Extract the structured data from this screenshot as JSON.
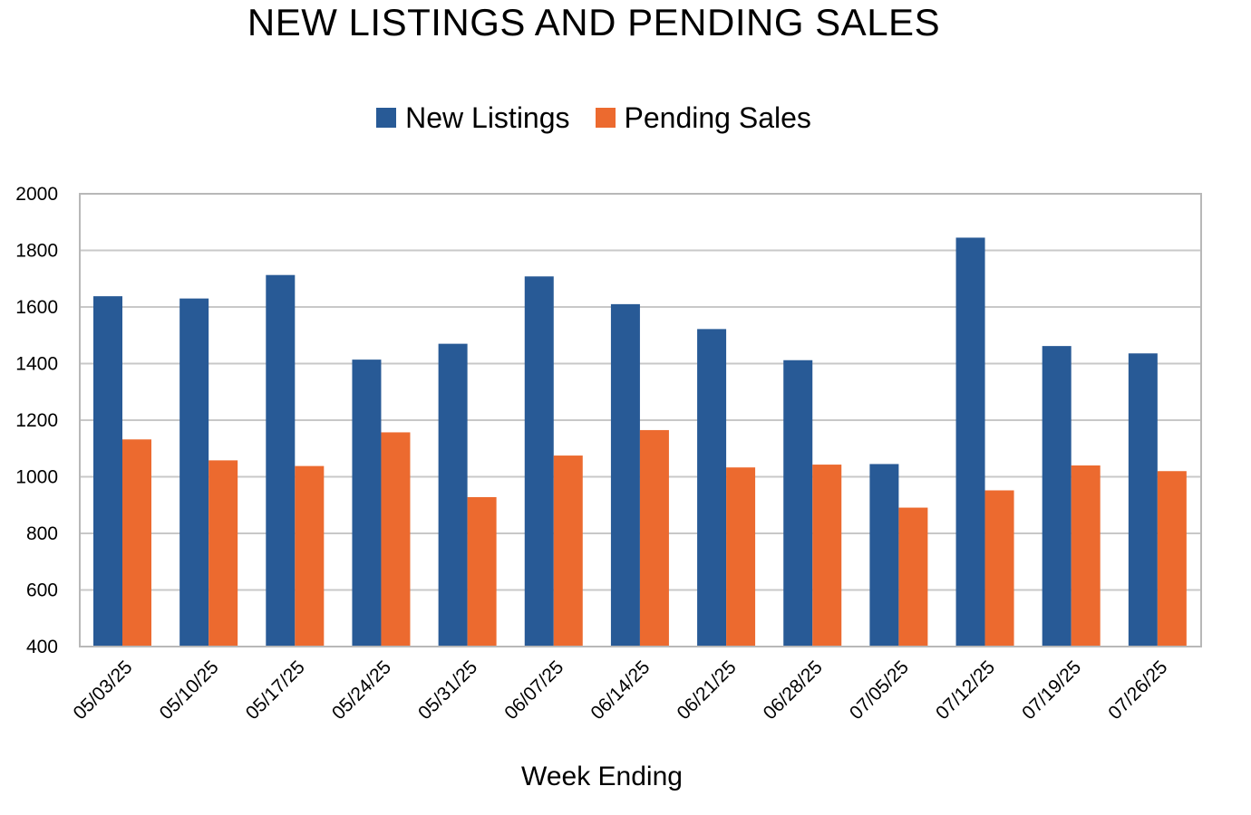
{
  "chart_data": {
    "type": "bar",
    "title": "NEW LISTINGS AND PENDING SALES",
    "xlabel": "Week Ending",
    "ylabel": "",
    "ylim": [
      400,
      2000
    ],
    "yticks": [
      400,
      600,
      800,
      1000,
      1200,
      1400,
      1600,
      1800,
      2000
    ],
    "grid": true,
    "legend_position": "top-center",
    "categories": [
      "05/03/25",
      "05/10/25",
      "05/17/25",
      "05/24/25",
      "05/31/25",
      "06/07/25",
      "06/14/25",
      "06/21/25",
      "06/28/25",
      "07/05/25",
      "07/12/25",
      "07/19/25",
      "07/26/25"
    ],
    "series": [
      {
        "name": "New Listings",
        "color": "#285A96",
        "values": [
          1638,
          1630,
          1713,
          1414,
          1470,
          1708,
          1610,
          1522,
          1412,
          1045,
          1845,
          1462,
          1436
        ]
      },
      {
        "name": "Pending Sales",
        "color": "#EC6A2F",
        "values": [
          1132,
          1058,
          1038,
          1157,
          928,
          1075,
          1165,
          1033,
          1043,
          891,
          952,
          1040,
          1020
        ]
      }
    ]
  }
}
